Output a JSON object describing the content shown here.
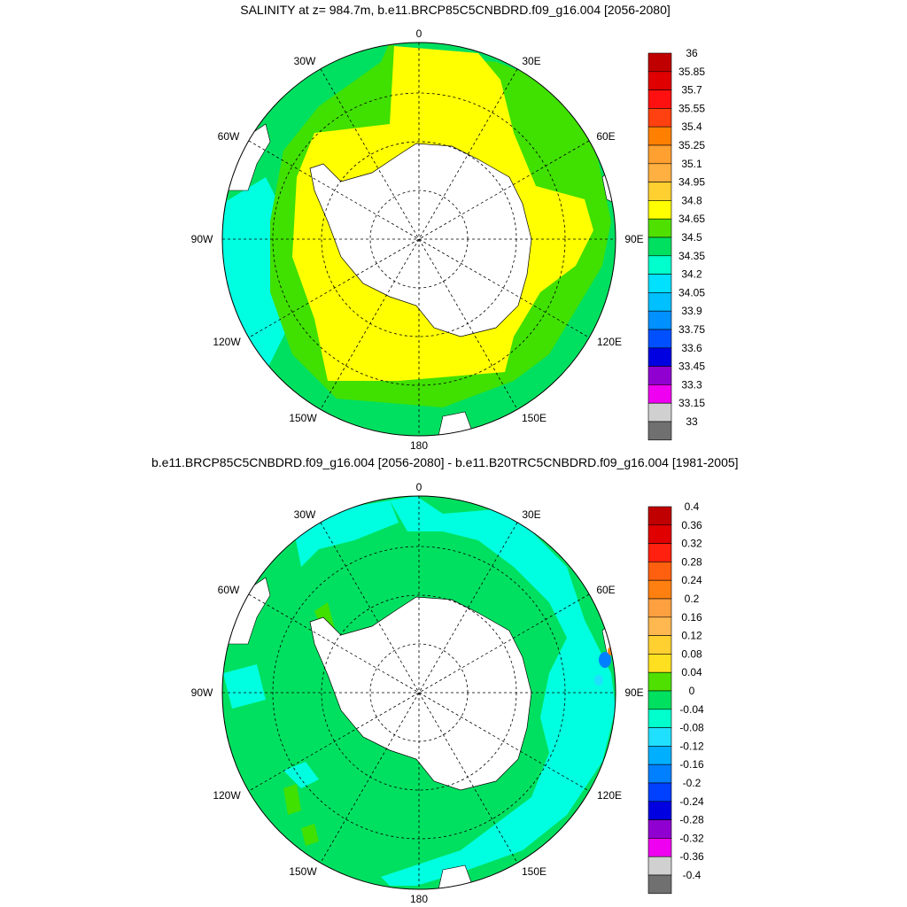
{
  "panel_top": {
    "title": "SALINITY at z= 984.7m, b.e11.BRCP85C5CNBDRD.f09_g16.004 [2056-2080]",
    "lon_labels": [
      "0",
      "30E",
      "60E",
      "90E",
      "120E",
      "150E",
      "180",
      "150W",
      "120W",
      "90W",
      "60W",
      "30W"
    ],
    "colorbar": {
      "labels": [
        "36",
        "35.85",
        "35.7",
        "35.55",
        "35.4",
        "35.25",
        "35.1",
        "34.95",
        "34.8",
        "34.65",
        "34.5",
        "34.35",
        "34.2",
        "34.05",
        "33.9",
        "33.75",
        "33.6",
        "33.45",
        "33.3",
        "33.15",
        "33"
      ],
      "colors": [
        "#c00000",
        "#e00000",
        "#ff1010",
        "#ff4010",
        "#ff8000",
        "#ffa030",
        "#ffb040",
        "#ffd030",
        "#ffff00",
        "#50e000",
        "#00e060",
        "#00ffcc",
        "#00e0ff",
        "#00c0ff",
        "#0090ff",
        "#0050ff",
        "#0000e0",
        "#9000d0",
        "#f000f0",
        "#d0d0d0",
        "#707070"
      ]
    }
  },
  "panel_bottom": {
    "title": "b.e11.BRCP85C5CNBDRD.f09_g16.004 [2056-2080] - b.e11.B20TRC5CNBDRD.f09_g16.004 [1981-2005]",
    "lon_labels": [
      "0",
      "30E",
      "60E",
      "90E",
      "120E",
      "150E",
      "180",
      "150W",
      "120W",
      "90W",
      "60W",
      "30W"
    ],
    "colorbar": {
      "labels": [
        "0.4",
        "0.36",
        "0.32",
        "0.28",
        "0.24",
        "0.2",
        "0.16",
        "0.12",
        "0.08",
        "0.04",
        "0",
        "-0.04",
        "-0.08",
        "-0.12",
        "-0.16",
        "-0.2",
        "-0.24",
        "-0.28",
        "-0.32",
        "-0.36",
        "-0.4"
      ],
      "colors": [
        "#c00000",
        "#e00000",
        "#ff2010",
        "#ff6010",
        "#ff8010",
        "#ffa040",
        "#ffb850",
        "#ffd030",
        "#ffe020",
        "#50e000",
        "#00e060",
        "#00ffcc",
        "#20e0ff",
        "#00b0ff",
        "#0080ff",
        "#0040ff",
        "#0000e0",
        "#9000d0",
        "#f000f0",
        "#d0d0d0",
        "#707070"
      ]
    }
  },
  "colors": {
    "land": "#ffffff",
    "yellow": "#ffff00",
    "green": "#40e000",
    "seagreen": "#00e060",
    "cyan": "#00ffe0"
  }
}
